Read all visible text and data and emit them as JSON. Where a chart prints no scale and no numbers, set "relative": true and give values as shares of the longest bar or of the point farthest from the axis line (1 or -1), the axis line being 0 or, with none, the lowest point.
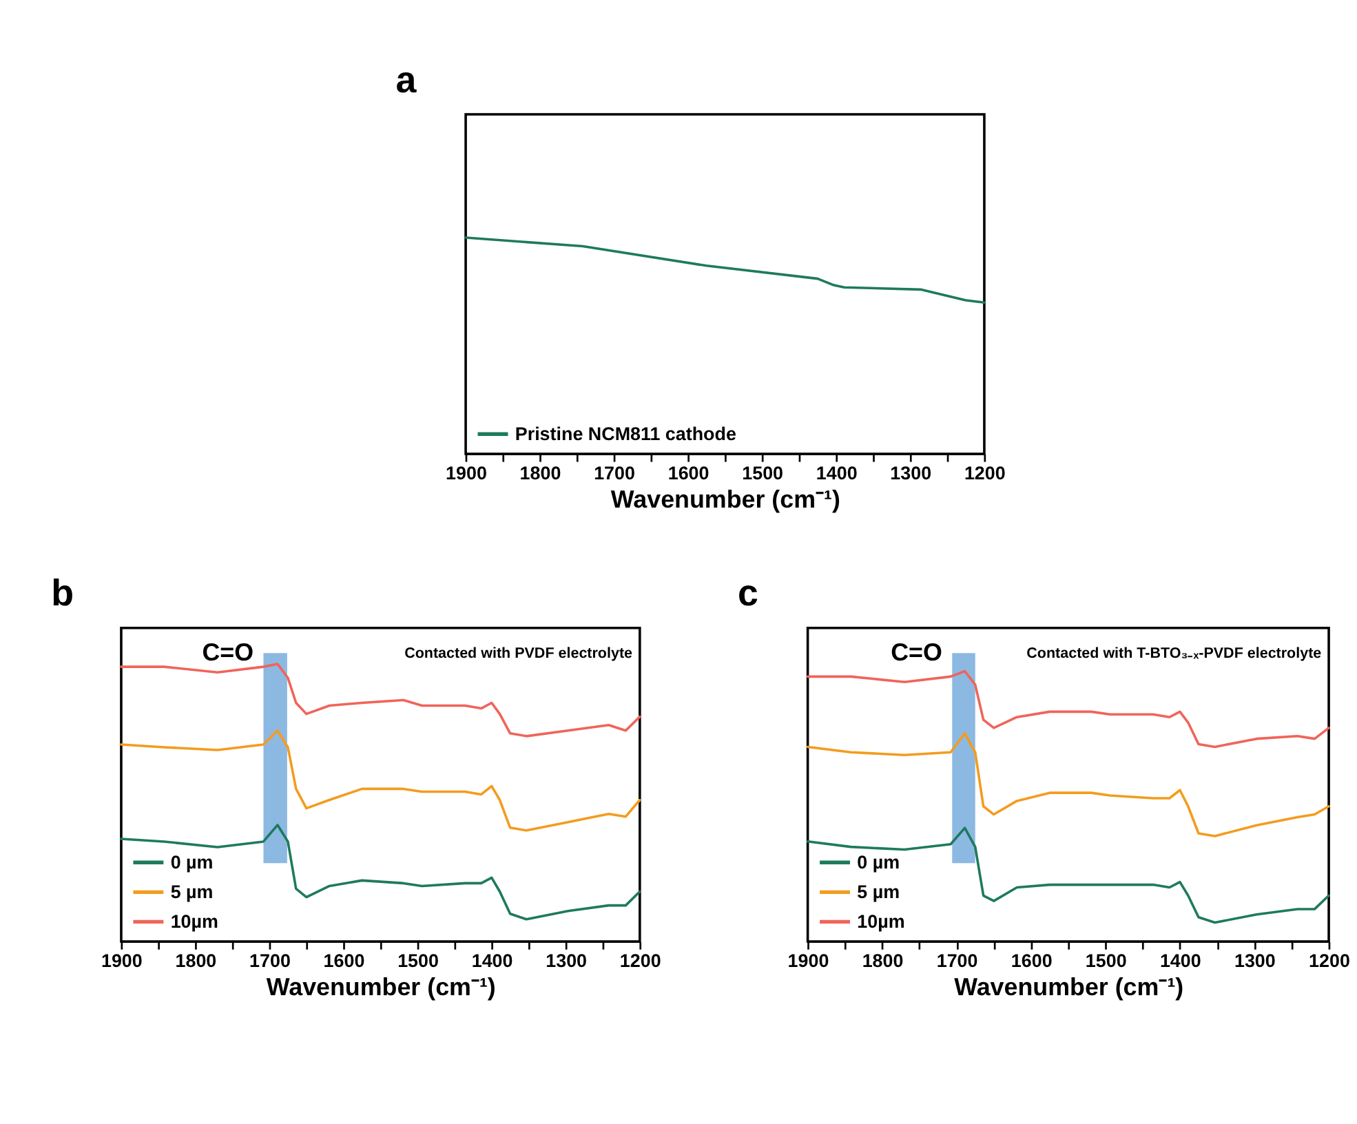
{
  "chart_data": [
    {
      "type": "line",
      "title": "a",
      "xlabel": "Wavenumber (cm⁻¹)",
      "relative": true,
      "xlim": [
        1900,
        1200
      ],
      "xticks": [
        1900,
        {
          "value": 1850,
          "label": null
        },
        1800,
        {
          "value": 1750,
          "label": null
        },
        1700,
        {
          "value": 1650,
          "label": null
        },
        1600,
        {
          "value": 1550,
          "label": null
        },
        1500,
        {
          "value": 1450,
          "label": null
        },
        1400,
        {
          "value": 1350,
          "label": null
        },
        1300,
        {
          "value": 1250,
          "label": null
        },
        1200
      ],
      "tick_labels": "x",
      "grid": false,
      "legend": "bottom left",
      "line_style": "solid",
      "series": [
        {
          "name": "Pristine NCM811 cathode",
          "color": "#1e7a5e",
          "x": [
            1900,
            1742,
            1575,
            1425,
            1403,
            1389,
            1286,
            1225,
            1200
          ],
          "values": [
            1.0,
            0.96,
            0.87,
            0.81,
            0.78,
            0.77,
            0.76,
            0.71,
            0.7
          ]
        }
      ]
    },
    {
      "type": "line",
      "title": "b",
      "xlabel": "Wavenumber (cm⁻¹)",
      "relative": true,
      "xlim": [
        1900,
        1200
      ],
      "xticks": [
        1900,
        {
          "value": 1850,
          "label": null
        },
        1800,
        {
          "value": 1750,
          "label": null
        },
        1700,
        {
          "value": 1650,
          "label": null
        },
        1600,
        {
          "value": 1550,
          "label": null
        },
        1500,
        {
          "value": 1450,
          "label": null
        },
        1400,
        {
          "value": 1350,
          "label": null
        },
        1300,
        {
          "value": 1250,
          "label": null
        },
        1200
      ],
      "tick_labels": "x",
      "grid": false,
      "legend": "bottom left",
      "line_style": "solid",
      "x": [
        1900,
        1842,
        1770,
        1708,
        1689,
        1675,
        1664,
        1650,
        1619,
        1575,
        1519,
        1494,
        1436,
        1414,
        1400,
        1389,
        1375,
        1353,
        1297,
        1242,
        1219,
        1200
      ],
      "series": [
        {
          "name": "0 µm",
          "color": "#1e7a5e",
          "values": [
            0.37,
            0.36,
            0.34,
            0.36,
            0.42,
            0.36,
            0.19,
            0.16,
            0.2,
            0.22,
            0.21,
            0.2,
            0.21,
            0.21,
            0.23,
            0.18,
            0.1,
            0.08,
            0.11,
            0.13,
            0.13,
            0.18
          ]
        },
        {
          "name": "5 µm",
          "color": "#f39c1f",
          "values": [
            0.71,
            0.7,
            0.69,
            0.71,
            0.76,
            0.7,
            0.55,
            0.48,
            0.51,
            0.55,
            0.55,
            0.54,
            0.54,
            0.53,
            0.56,
            0.51,
            0.41,
            0.4,
            0.43,
            0.46,
            0.45,
            0.51
          ]
        },
        {
          "name": "10µm",
          "color": "#f0645a",
          "values": [
            0.99,
            0.99,
            0.97,
            0.99,
            1.0,
            0.95,
            0.86,
            0.82,
            0.85,
            0.86,
            0.87,
            0.85,
            0.85,
            0.84,
            0.86,
            0.82,
            0.75,
            0.74,
            0.76,
            0.78,
            0.76,
            0.81
          ]
        }
      ],
      "bands": [
        {
          "axis": "x",
          "from": 1708,
          "to": 1676,
          "label": "C=O",
          "color": "#5b9bd5"
        }
      ],
      "annotations": [
        "Contacted with PVDF electrolyte"
      ]
    },
    {
      "type": "line",
      "title": "c",
      "xlabel": "Wavenumber (cm⁻¹)",
      "relative": true,
      "xlim": [
        1900,
        1200
      ],
      "xticks": [
        1900,
        {
          "value": 1850,
          "label": null
        },
        1800,
        {
          "value": 1750,
          "label": null
        },
        1700,
        {
          "value": 1650,
          "label": null
        },
        1600,
        {
          "value": 1550,
          "label": null
        },
        1500,
        {
          "value": 1450,
          "label": null
        },
        1400,
        {
          "value": 1350,
          "label": null
        },
        1300,
        {
          "value": 1250,
          "label": null
        },
        1200
      ],
      "tick_labels": "x",
      "grid": false,
      "legend": "bottom left",
      "line_style": "solid",
      "x": [
        1900,
        1842,
        1770,
        1708,
        1689,
        1675,
        1664,
        1650,
        1619,
        1575,
        1519,
        1494,
        1436,
        1414,
        1400,
        1389,
        1375,
        1353,
        1297,
        1242,
        1219,
        1200
      ],
      "series": [
        {
          "name": "0 µm",
          "color": "#1e7a5e",
          "values": [
            0.37,
            0.35,
            0.34,
            0.36,
            0.42,
            0.35,
            0.17,
            0.15,
            0.2,
            0.21,
            0.21,
            0.21,
            0.21,
            0.2,
            0.22,
            0.17,
            0.09,
            0.07,
            0.1,
            0.12,
            0.12,
            0.17
          ]
        },
        {
          "name": "5 µm",
          "color": "#f39c1f",
          "values": [
            0.72,
            0.7,
            0.69,
            0.7,
            0.77,
            0.7,
            0.5,
            0.47,
            0.52,
            0.55,
            0.55,
            0.54,
            0.53,
            0.53,
            0.56,
            0.5,
            0.4,
            0.39,
            0.43,
            0.46,
            0.47,
            0.5
          ]
        },
        {
          "name": "10µm",
          "color": "#f0645a",
          "values": [
            0.98,
            0.98,
            0.96,
            0.98,
            1.0,
            0.95,
            0.82,
            0.79,
            0.83,
            0.85,
            0.85,
            0.84,
            0.84,
            0.83,
            0.85,
            0.81,
            0.73,
            0.72,
            0.75,
            0.76,
            0.75,
            0.79
          ]
        }
      ],
      "bands": [
        {
          "axis": "x",
          "from": 1706,
          "to": 1675,
          "label": "C=O",
          "color": "#5b9bd5"
        }
      ],
      "annotations": [
        "Contacted with T-BTO₃₋ₓ-PVDF electrolyte"
      ]
    }
  ]
}
